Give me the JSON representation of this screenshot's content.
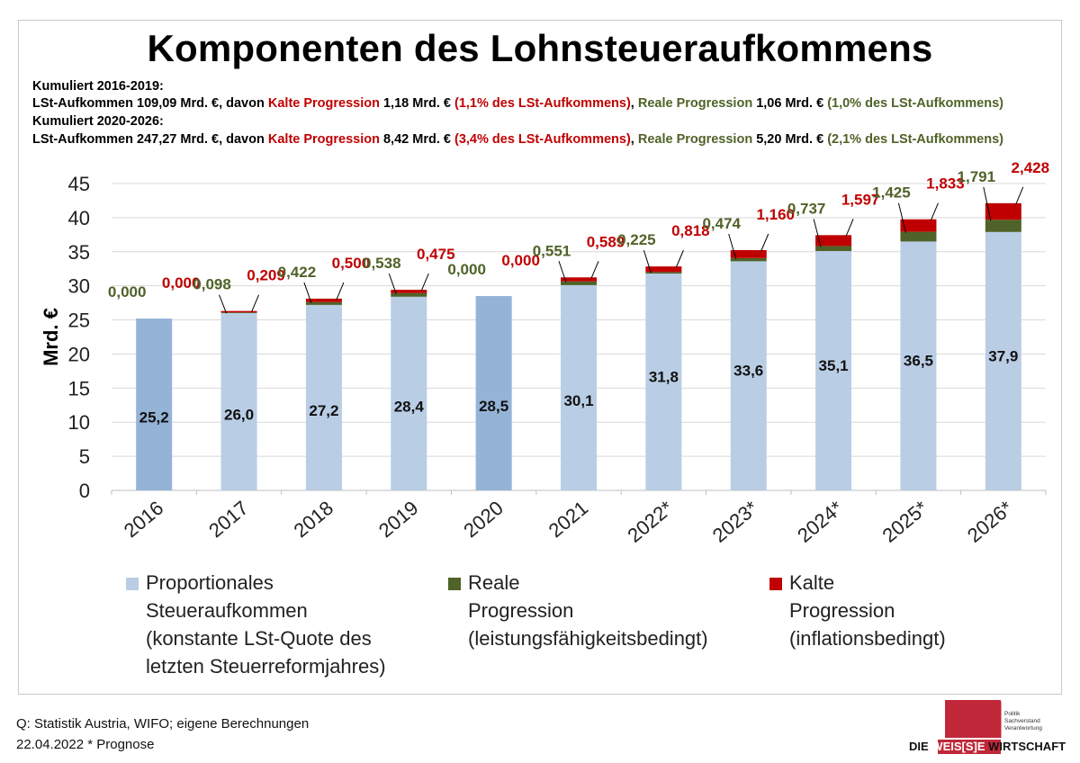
{
  "title": "Komponenten des Lohnsteueraufkommens",
  "info": {
    "line1": "Kumuliert 2016-2019:",
    "line2": {
      "a": "LSt-Aufkommen 109,09 Mrd. €, davon ",
      "b": "Kalte Progression",
      "c": " 1,18 Mrd. €  ",
      "d": "(1,1% des LSt-Aufkommens)",
      "e": ", ",
      "f": "Reale Progression",
      "g": " 1,06 Mrd. €  ",
      "h": "(1,0% des LSt-Aufkommens)"
    },
    "line3": "Kumuliert 2020-2026:",
    "line4": {
      "a": "LSt-Aufkommen 247,27 Mrd. €, davon ",
      "b": "Kalte Progression",
      "c": " 8,42 Mrd. €  ",
      "d": "(3,4% des LSt-Aufkommens)",
      "e": ", ",
      "f": "Reale Progression",
      "g": " 5,20 Mrd. €  ",
      "h": "(2,1% des LSt-Aufkommens)"
    }
  },
  "colors": {
    "proportional": "#b9cde5",
    "proportional_highlight": "#95b3d7",
    "reale": "#4f6228",
    "kalte": "#c00000",
    "grid": "#d9d9d9"
  },
  "chart_data": {
    "type": "bar",
    "stacked": true,
    "ylabel": "Mrd. €",
    "ylim": [
      0,
      45
    ],
    "yticks": [
      0,
      5,
      10,
      15,
      20,
      25,
      30,
      35,
      40,
      45
    ],
    "grid": true,
    "categories": [
      "2016",
      "2017",
      "2018",
      "2019",
      "2020",
      "2021",
      "2022*",
      "2023*",
      "2024*",
      "2025*",
      "2026*"
    ],
    "highlight_categories": [
      "2016",
      "2020"
    ],
    "series": [
      {
        "name": "Proportionales Steueraufkommen (konstante LSt-Quote des letzten Steuerreformjahres)",
        "values": [
          25.2,
          26.0,
          27.2,
          28.4,
          28.5,
          30.1,
          31.8,
          33.6,
          35.1,
          36.5,
          37.9
        ],
        "labels": [
          "25,2",
          "26,0",
          "27,2",
          "28,4",
          "28,5",
          "30,1",
          "31,8",
          "33,6",
          "35,1",
          "36,5",
          "37,9"
        ]
      },
      {
        "name": "Reale Progression (leistungsfähigkeitsbedingt)",
        "values": [
          0.0,
          0.098,
          0.422,
          0.538,
          0.0,
          0.551,
          0.225,
          0.474,
          0.737,
          1.425,
          1.791
        ],
        "labels": [
          "0,000",
          "0,098",
          "0,422",
          "0,538",
          "0,000",
          "0,551",
          "0,225",
          "0,474",
          "0,737",
          "1,425",
          "1,791"
        ]
      },
      {
        "name": "Kalte Progression (inflationsbedingt)",
        "values": [
          0.0,
          0.209,
          0.5,
          0.475,
          0.0,
          0.589,
          0.818,
          1.16,
          1.597,
          1.833,
          2.428
        ],
        "labels": [
          "0,000",
          "0,209",
          "0,500",
          "0,475",
          "0,000",
          "0,589",
          "0,818",
          "1,160",
          "1,597",
          "1,833",
          "2,428"
        ]
      }
    ]
  },
  "legend": {
    "proportional": [
      "Proportionales",
      "Steueraufkommen",
      "(konstante LSt-Quote des",
      "letzten Steuerreformjahres)"
    ],
    "reale": [
      "Reale",
      "Progression",
      "(leistungsfähigkeitsbedingt)"
    ],
    "kalte": [
      "Kalte",
      "Progression",
      "(inflationsbedingt)"
    ]
  },
  "footer": {
    "source": "Q: Statistik Austria, WIFO; eigene Berechnungen",
    "date": "22.04.2022  * Prognose"
  },
  "logo": {
    "tagline": [
      "Politik",
      "Sachverstand",
      "Verantwortung"
    ],
    "text_left": "DIE ",
    "text_mid": "WEIS[S]E",
    "text_right": " WIRTSCHAFT"
  }
}
